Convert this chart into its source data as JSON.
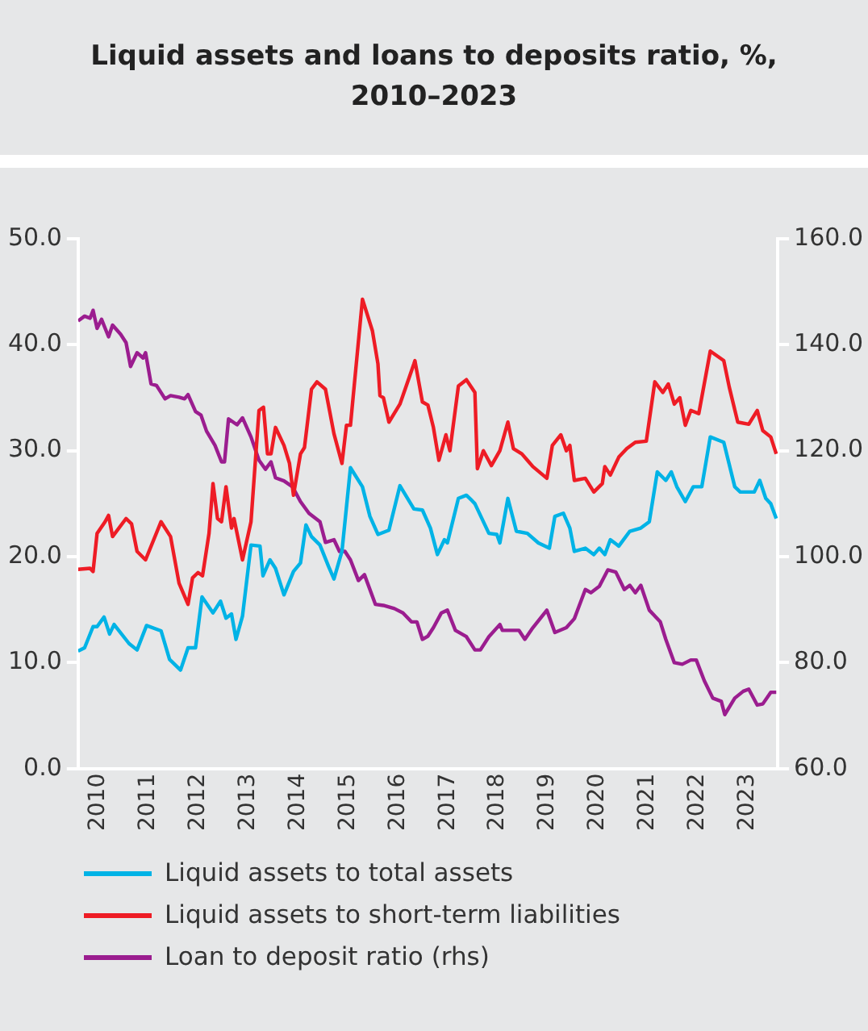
{
  "chart_data": {
    "type": "line",
    "title": "Liquid assets and loans to deposits ratio, %,\n2010–2023",
    "series": [
      {
        "name": "Liquid assets to total assets",
        "color": "#00b3e6",
        "x": [
          2009.6,
          2009.73,
          2009.9,
          2009.98,
          2010.12,
          2010.23,
          2010.32,
          2010.62,
          2010.78,
          2010.97,
          2011.26,
          2011.43,
          2011.65,
          2011.8,
          2011.95,
          2012.08,
          2012.3,
          2012.45,
          2012.56,
          2012.67,
          2012.76,
          2012.89,
          2013.06,
          2013.24,
          2013.3,
          2013.44,
          2013.55,
          2013.72,
          2013.91,
          2014.05,
          2014.16,
          2014.27,
          2014.44,
          2014.61,
          2014.72,
          2014.88,
          2015.05,
          2015.29,
          2015.44,
          2015.6,
          2015.82,
          2016.04,
          2016.32,
          2016.49,
          2016.65,
          2016.79,
          2016.93,
          2016.99,
          2017.21,
          2017.37,
          2017.48,
          2017.54,
          2017.82,
          2017.98,
          2018.04,
          2018.2,
          2018.37,
          2018.59,
          2018.81,
          2019.03,
          2019.14,
          2019.31,
          2019.44,
          2019.53,
          2019.75,
          2019.92,
          2020.03,
          2020.14,
          2020.25,
          2020.42,
          2020.64,
          2020.86,
          2021.03,
          2021.19,
          2021.36,
          2021.47,
          2021.58,
          2021.75,
          2021.91,
          2022.08,
          2022.25,
          2022.52,
          2022.74,
          2022.85,
          2023.13,
          2023.24,
          2023.36,
          2023.46,
          2023.57
        ],
        "values": [
          11.1,
          11.4,
          13.4,
          13.4,
          14.3,
          12.7,
          13.6,
          11.8,
          11.2,
          13.5,
          13.0,
          10.3,
          9.3,
          11.4,
          11.4,
          16.2,
          14.7,
          15.8,
          14.2,
          14.6,
          12.2,
          14.4,
          21.1,
          21.0,
          18.2,
          19.7,
          18.9,
          16.4,
          18.6,
          19.4,
          23.0,
          21.9,
          21.1,
          19.1,
          17.9,
          20.5,
          28.4,
          26.6,
          23.8,
          22.1,
          22.5,
          26.7,
          24.5,
          24.4,
          22.7,
          20.2,
          21.6,
          21.3,
          25.5,
          25.8,
          25.3,
          25.0,
          22.2,
          22.1,
          21.3,
          25.5,
          22.4,
          22.2,
          21.3,
          20.8,
          23.8,
          24.1,
          22.7,
          20.5,
          20.8,
          20.2,
          20.8,
          20.2,
          21.6,
          21.0,
          22.4,
          22.7,
          23.3,
          28.0,
          27.2,
          28.0,
          26.6,
          25.2,
          26.6,
          26.6,
          31.3,
          30.8,
          26.6,
          26.1,
          26.1,
          27.2,
          25.5,
          25.0,
          23.6
        ]
      },
      {
        "name": "Liquid assets to short-term liabilities",
        "color": "#ee1c25",
        "x": [
          2009.6,
          2009.84,
          2009.9,
          2009.98,
          2010.14,
          2010.21,
          2010.29,
          2010.56,
          2010.67,
          2010.78,
          2010.95,
          2011.26,
          2011.45,
          2011.62,
          2011.8,
          2011.89,
          2012.0,
          2012.09,
          2012.22,
          2012.3,
          2012.39,
          2012.47,
          2012.56,
          2012.67,
          2012.72,
          2012.89,
          2013.06,
          2013.22,
          2013.31,
          2013.39,
          2013.46,
          2013.55,
          2013.72,
          2013.83,
          2013.91,
          2014.05,
          2014.13,
          2014.27,
          2014.38,
          2014.55,
          2014.72,
          2014.88,
          2014.97,
          2015.05,
          2015.29,
          2015.49,
          2015.6,
          2015.64,
          2015.71,
          2015.82,
          2016.04,
          2016.32,
          2016.34,
          2016.49,
          2016.6,
          2016.71,
          2016.82,
          2016.96,
          2017.04,
          2017.21,
          2017.37,
          2017.54,
          2017.59,
          2017.71,
          2017.87,
          2018.04,
          2018.2,
          2018.31,
          2018.48,
          2018.59,
          2018.7,
          2018.98,
          2019.09,
          2019.26,
          2019.37,
          2019.44,
          2019.53,
          2019.75,
          2019.92,
          2020.09,
          2020.14,
          2020.25,
          2020.42,
          2020.58,
          2020.75,
          2020.97,
          2021.14,
          2021.3,
          2021.41,
          2021.53,
          2021.64,
          2021.75,
          2021.86,
          2022.02,
          2022.25,
          2022.52,
          2022.63,
          2022.8,
          2023.02,
          2023.19,
          2023.3,
          2023.46,
          2023.57
        ],
        "values": [
          18.8,
          18.9,
          18.6,
          22.2,
          23.3,
          23.9,
          21.9,
          23.6,
          23.1,
          20.5,
          19.7,
          23.3,
          21.9,
          17.5,
          15.5,
          18.0,
          18.5,
          18.2,
          22.2,
          26.9,
          23.6,
          23.3,
          26.6,
          22.7,
          23.6,
          19.7,
          23.3,
          33.8,
          34.1,
          29.7,
          29.7,
          32.2,
          30.5,
          28.8,
          25.8,
          29.7,
          30.3,
          35.8,
          36.5,
          35.8,
          31.6,
          28.8,
          32.4,
          32.4,
          44.3,
          41.3,
          38.2,
          35.2,
          35.0,
          32.7,
          34.4,
          38.2,
          38.5,
          34.6,
          34.3,
          32.2,
          29.1,
          31.5,
          30.0,
          36.1,
          36.7,
          35.5,
          28.3,
          30.0,
          28.6,
          30.0,
          32.7,
          30.2,
          29.7,
          29.1,
          28.5,
          27.4,
          30.5,
          31.5,
          30.0,
          30.5,
          27.2,
          27.4,
          26.1,
          26.9,
          28.5,
          27.7,
          29.4,
          30.2,
          30.8,
          30.9,
          36.5,
          35.5,
          36.3,
          34.4,
          35.0,
          32.4,
          33.8,
          33.5,
          39.4,
          38.5,
          36.0,
          32.7,
          32.5,
          33.8,
          31.9,
          31.3,
          29.7
        ]
      },
      {
        "name": "Loan to deposit ratio (rhs)",
        "color": "#9b1d8f",
        "axis": "y2",
        "x": [
          2009.6,
          2009.73,
          2009.84,
          2009.9,
          2009.98,
          2010.07,
          2010.21,
          2010.29,
          2010.45,
          2010.56,
          2010.65,
          2010.78,
          2010.9,
          2010.95,
          2011.06,
          2011.17,
          2011.34,
          2011.45,
          2011.62,
          2011.73,
          2011.8,
          2011.95,
          2012.06,
          2012.17,
          2012.34,
          2012.47,
          2012.53,
          2012.61,
          2012.78,
          2012.89,
          2013.06,
          2013.22,
          2013.35,
          2013.46,
          2013.55,
          2013.72,
          2013.89,
          2014.05,
          2014.22,
          2014.44,
          2014.55,
          2014.72,
          2014.83,
          2014.94,
          2015.05,
          2015.21,
          2015.33,
          2015.55,
          2015.71,
          2015.93,
          2016.1,
          2016.27,
          2016.38,
          2016.49,
          2016.6,
          2016.71,
          2016.87,
          2016.99,
          2017.15,
          2017.37,
          2017.54,
          2017.65,
          2017.82,
          2018.04,
          2018.09,
          2018.42,
          2018.54,
          2018.7,
          2018.98,
          2019.14,
          2019.37,
          2019.53,
          2019.75,
          2019.86,
          2020.03,
          2020.2,
          2020.36,
          2020.53,
          2020.64,
          2020.75,
          2020.86,
          2021.03,
          2021.25,
          2021.36,
          2021.53,
          2021.69,
          2021.86,
          2021.97,
          2022.13,
          2022.3,
          2022.47,
          2022.54,
          2022.74,
          2022.91,
          2023.02,
          2023.19,
          2023.3,
          2023.46,
          2023.57
        ],
        "values": [
          144.5,
          145.4,
          145.0,
          146.5,
          143.1,
          144.8,
          141.5,
          143.7,
          142.0,
          140.4,
          135.9,
          138.5,
          137.5,
          138.5,
          132.6,
          132.3,
          129.8,
          130.4,
          130.1,
          129.8,
          130.6,
          127.4,
          126.7,
          123.7,
          121.0,
          117.9,
          117.9,
          126.0,
          124.9,
          126.2,
          122.6,
          118.2,
          116.5,
          117.9,
          114.9,
          114.3,
          113.2,
          110.4,
          108.2,
          106.6,
          102.7,
          103.2,
          101.0,
          101.0,
          99.4,
          95.5,
          96.6,
          91.0,
          90.8,
          90.2,
          89.4,
          87.7,
          87.7,
          84.4,
          85.0,
          86.6,
          89.4,
          89.9,
          86.1,
          84.9,
          82.4,
          82.4,
          84.9,
          87.2,
          86.1,
          86.1,
          84.4,
          86.6,
          89.9,
          85.7,
          86.6,
          88.3,
          93.8,
          93.2,
          94.4,
          97.5,
          97.1,
          93.8,
          94.6,
          93.2,
          94.6,
          89.9,
          87.7,
          84.4,
          80.0,
          79.7,
          80.5,
          80.5,
          76.6,
          73.3,
          72.7,
          70.2,
          73.3,
          74.6,
          75.0,
          72.0,
          72.2,
          74.4,
          74.4
        ]
      }
    ],
    "xlim": [
      2009.6,
      2023.6
    ],
    "xticks": [
      2010,
      2011,
      2012,
      2013,
      2014,
      2015,
      2016,
      2017,
      2018,
      2019,
      2020,
      2021,
      2022,
      2023
    ],
    "ylim": [
      0,
      50
    ],
    "yticks": [
      {
        "value": 0,
        "label": "0.0"
      },
      {
        "value": 10,
        "label": "10.0"
      },
      {
        "value": 20,
        "label": "20.0"
      },
      {
        "value": 30,
        "label": "30.0"
      },
      {
        "value": 40,
        "label": "40.0"
      },
      {
        "value": 50,
        "label": "50.0"
      }
    ],
    "y2lim": [
      60,
      160
    ],
    "y2ticks": [
      {
        "value": 60,
        "label": "60.0"
      },
      {
        "value": 80,
        "label": "80.0"
      },
      {
        "value": 100,
        "label": "100.0"
      },
      {
        "value": 120,
        "label": "120.0"
      },
      {
        "value": 140,
        "label": "140.0"
      },
      {
        "value": 160,
        "label": "160.0"
      }
    ],
    "grid": false,
    "legend": "bottom",
    "marker": "none",
    "line_style": "solid"
  }
}
